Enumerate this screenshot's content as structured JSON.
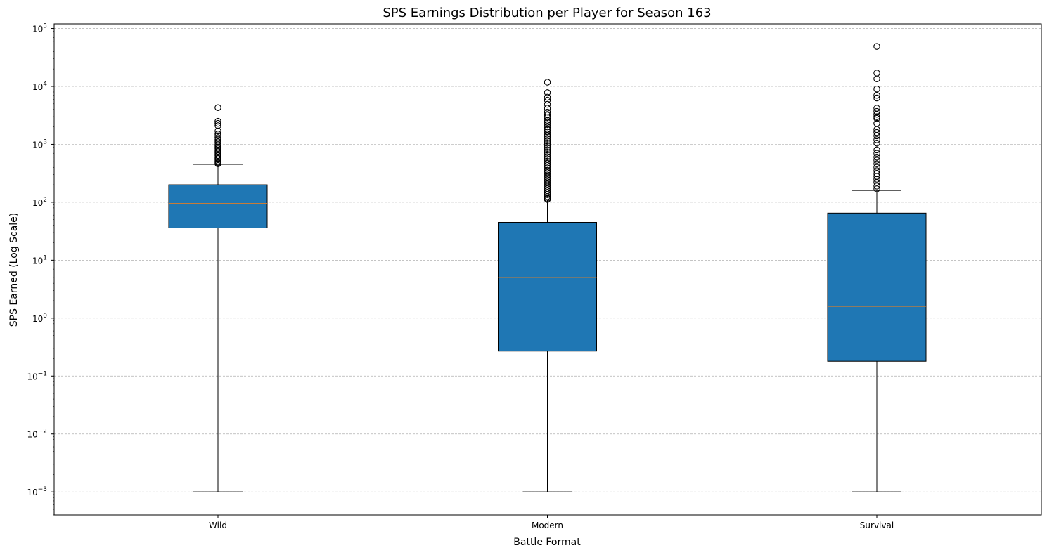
{
  "chart_data": {
    "type": "box",
    "title": "SPS Earnings Distribution per Player for Season 163",
    "xlabel": "Battle Format",
    "ylabel": "SPS Earned (Log Scale)",
    "y_scale": "log",
    "ylim": [
      0.0004,
      120000
    ],
    "y_ticks": [
      {
        "value": 0.001,
        "base": "10",
        "exp": "−3"
      },
      {
        "value": 0.01,
        "base": "10",
        "exp": "−2"
      },
      {
        "value": 0.1,
        "base": "10",
        "exp": "−1"
      },
      {
        "value": 1,
        "base": "10",
        "exp": "0"
      },
      {
        "value": 10,
        "base": "10",
        "exp": "1"
      },
      {
        "value": 100,
        "base": "10",
        "exp": "2"
      },
      {
        "value": 1000,
        "base": "10",
        "exp": "3"
      },
      {
        "value": 10000,
        "base": "10",
        "exp": "4"
      },
      {
        "value": 100000,
        "base": "10",
        "exp": "5"
      }
    ],
    "grid": "y-major-dashed",
    "box_color": "#1f77b4",
    "median_color": "#ff7f0e",
    "categories": [
      "Wild",
      "Modern",
      "Survival"
    ],
    "boxes": [
      {
        "name": "Wild",
        "whisker_low": 0.001,
        "q1": 36,
        "median": 95,
        "q3": 200,
        "whisker_high": 450,
        "outliers": [
          4300,
          2500,
          2300,
          2100,
          1700,
          1500,
          1400,
          1300,
          1200,
          1100,
          1000,
          950,
          900,
          850,
          800,
          760,
          720,
          680,
          640,
          600,
          570,
          540,
          510,
          480,
          460
        ]
      },
      {
        "name": "Modern",
        "whisker_low": 0.001,
        "q1": 0.27,
        "median": 5,
        "q3": 45,
        "whisker_high": 110,
        "outliers": [
          11800,
          7800,
          6500,
          5800,
          4900,
          4200,
          3600,
          3200,
          2900,
          2600,
          2400,
          2200,
          2000,
          1800,
          1650,
          1500,
          1380,
          1260,
          1150,
          1050,
          960,
          880,
          800,
          730,
          670,
          610,
          560,
          510,
          470,
          430,
          390,
          355,
          325,
          295,
          270,
          245,
          225,
          205,
          188,
          172,
          158,
          145,
          135,
          125,
          117,
          112
        ]
      },
      {
        "name": "Survival",
        "whisker_low": 0.001,
        "q1": 0.18,
        "median": 1.6,
        "q3": 65,
        "whisker_high": 160,
        "outliers": [
          49000,
          17000,
          13500,
          9000,
          7000,
          6300,
          4200,
          3700,
          3300,
          3000,
          2800,
          2300,
          1800,
          1600,
          1400,
          1200,
          1050,
          800,
          700,
          600,
          530,
          460,
          400,
          350,
          310,
          280,
          250,
          220,
          190,
          170
        ]
      }
    ]
  }
}
